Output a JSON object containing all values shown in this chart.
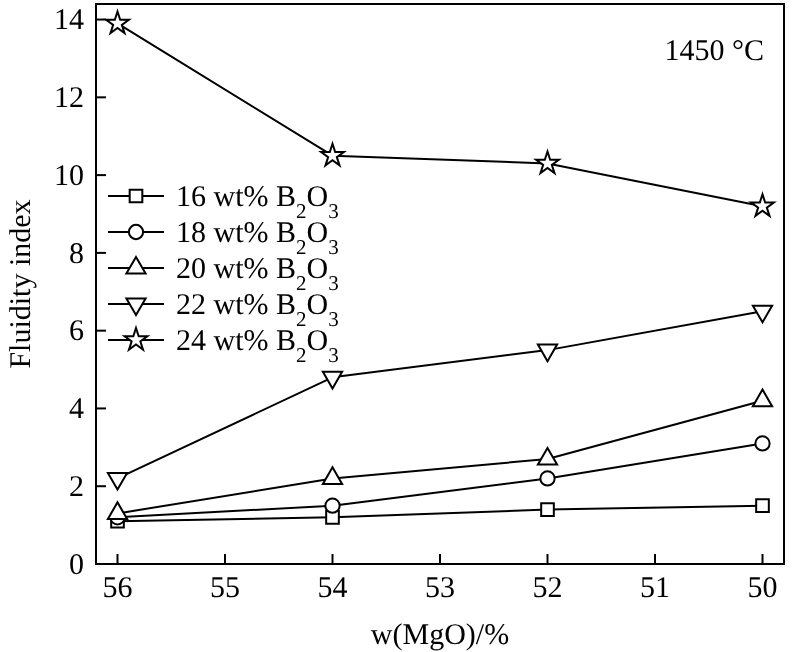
{
  "chart_data": {
    "type": "line",
    "xlabel": "w(MgO)/%",
    "ylabel": "Fluidity index",
    "annotations": [
      "1450 °C"
    ],
    "x": [
      56,
      54,
      52,
      50
    ],
    "xlim": [
      56.2,
      49.8
    ],
    "xticks": [
      56,
      55,
      54,
      53,
      52,
      51,
      50
    ],
    "ylim": [
      0,
      14.4
    ],
    "yticks": [
      0,
      2,
      4,
      6,
      8,
      10,
      12,
      14
    ],
    "grid": false,
    "legend": "left",
    "line_style": "solid",
    "series": [
      {
        "name": "16 wt% B$_{2}$O$_{3}$",
        "color": "#000000",
        "marker": "square",
        "values": [
          1.1,
          1.2,
          1.4,
          1.5
        ]
      },
      {
        "name": "18 wt% B$_{2}$O$_{3}$",
        "color": "#000000",
        "marker": "circle",
        "values": [
          1.2,
          1.5,
          2.2,
          3.1
        ]
      },
      {
        "name": "20 wt% B$_{2}$O$_{3}$",
        "color": "#000000",
        "marker": "triangle",
        "values": [
          1.3,
          2.2,
          2.7,
          4.2
        ]
      },
      {
        "name": "22 wt% B$_{2}$O$_{3}$",
        "color": "#000000",
        "marker": "triangle-down",
        "values": [
          2.2,
          4.8,
          5.5,
          6.5
        ]
      },
      {
        "name": "24 wt% B$_{2}$O$_{3}$",
        "color": "#000000",
        "marker": "star",
        "values": [
          13.9,
          10.5,
          10.3,
          9.2
        ]
      }
    ]
  }
}
